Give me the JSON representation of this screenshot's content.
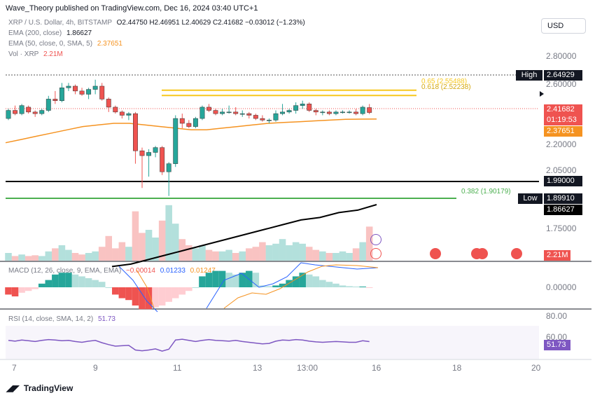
{
  "header": {
    "publisher": "Wave_Theory published on TradingView.com, Dec 16, 2024 03:40 UTC+1"
  },
  "currency_button": "USD",
  "legend": {
    "symbol": "XRP / U.S. Dollar, 4h, BITSTAMP",
    "ohlc": "O2.44750  H2.46951  L2.40629  C2.41682  −0.03012 (−1.23%)",
    "ema200_label": "EMA (200, close)",
    "ema200_value": "1.86627",
    "ema50_label": "EMA (50, close, 0, SMA, 5)",
    "ema50_value": "2.37651",
    "vol_label": "Vol · XRP",
    "vol_value": "2.21M",
    "macd_label": "MACD (12, 26, close, 9, EMA, EMA)",
    "macd_v1": "−0.00014",
    "macd_v2": "0.01233",
    "macd_v3": "0.01247",
    "rsi_label": "RSI (14, close, SMA, 14, 2)",
    "rsi_value": "51.73"
  },
  "price_axis": [
    "2.80000",
    "2.60000",
    "2.20000",
    "2.05000",
    "1.75000"
  ],
  "macd_axis": [
    "0.00000"
  ],
  "rsi_axis": [
    "80.00",
    "60.00"
  ],
  "price_tags": {
    "high_label": "High",
    "high_value": "2.64929",
    "last_value": "2.41682",
    "countdown": "01:19:53",
    "ema50_tag": "2.37651",
    "level1_tag": "1.99000",
    "low_label": "Low",
    "low_value": "1.89910",
    "ema200_tag": "1.86627",
    "vol_tag": "2.21M",
    "rsi_tag": "51.73"
  },
  "fib": {
    "upper_label": "0.65 (2.55488)",
    "lower_label": "0.618 (2.52238)",
    "mid_label": "0.382 (1.90179)"
  },
  "x_axis": [
    "7",
    "9",
    "11",
    "13",
    "13:00",
    "16",
    "18",
    "20"
  ],
  "brand": "TradingView",
  "colors": {
    "up": "#26a69a",
    "down": "#ef5350",
    "ema50": "#f59321",
    "ema200": "#000000",
    "fib": "#f7c81e",
    "fib382": "#4caf50",
    "rsi": "#7e57c2"
  },
  "chart_data": {
    "type": "candlestick",
    "timeframe": "4h",
    "xlabels": [
      "7",
      "9",
      "11",
      "13",
      "13:00",
      "16",
      "18",
      "20"
    ],
    "ylim": [
      1.75,
      2.8
    ],
    "candles_ohlc": [
      [
        2.38,
        2.44,
        2.37,
        2.43
      ],
      [
        2.43,
        2.46,
        2.4,
        2.41
      ],
      [
        2.41,
        2.47,
        2.4,
        2.46
      ],
      [
        2.45,
        2.46,
        2.41,
        2.42
      ],
      [
        2.42,
        2.43,
        2.39,
        2.41
      ],
      [
        2.41,
        2.44,
        2.4,
        2.43
      ],
      [
        2.43,
        2.52,
        2.42,
        2.5
      ],
      [
        2.5,
        2.55,
        2.47,
        2.49
      ],
      [
        2.49,
        2.6,
        2.48,
        2.57
      ],
      [
        2.57,
        2.6,
        2.55,
        2.58
      ],
      [
        2.58,
        2.59,
        2.53,
        2.55
      ],
      [
        2.55,
        2.57,
        2.52,
        2.53
      ],
      [
        2.53,
        2.57,
        2.5,
        2.56
      ],
      [
        2.56,
        2.62,
        2.53,
        2.58
      ],
      [
        2.58,
        2.6,
        2.49,
        2.5
      ],
      [
        2.5,
        2.51,
        2.42,
        2.45
      ],
      [
        2.45,
        2.46,
        2.41,
        2.42
      ],
      [
        2.42,
        2.43,
        2.38,
        2.4
      ],
      [
        2.4,
        2.42,
        2.37,
        2.41
      ],
      [
        2.41,
        2.42,
        2.1,
        2.18
      ],
      [
        2.18,
        2.2,
        1.95,
        2.15
      ],
      [
        2.15,
        2.19,
        2.02,
        2.17
      ],
      [
        2.17,
        2.21,
        2.14,
        2.2
      ],
      [
        2.2,
        2.21,
        2.03,
        2.05
      ],
      [
        2.05,
        2.11,
        1.9,
        2.1
      ],
      [
        2.1,
        2.4,
        2.08,
        2.38
      ],
      [
        2.38,
        2.41,
        2.32,
        2.35
      ],
      [
        2.35,
        2.37,
        2.32,
        2.33
      ],
      [
        2.33,
        2.39,
        2.32,
        2.38
      ],
      [
        2.38,
        2.46,
        2.37,
        2.45
      ],
      [
        2.45,
        2.47,
        2.42,
        2.43
      ],
      [
        2.43,
        2.44,
        2.4,
        2.41
      ],
      [
        2.41,
        2.44,
        2.4,
        2.42
      ],
      [
        2.42,
        2.46,
        2.41,
        2.42
      ],
      [
        2.42,
        2.45,
        2.4,
        2.41
      ],
      [
        2.41,
        2.43,
        2.39,
        2.41
      ],
      [
        2.41,
        2.42,
        2.38,
        2.4
      ],
      [
        2.4,
        2.41,
        2.37,
        2.38
      ],
      [
        2.38,
        2.4,
        2.36,
        2.37
      ],
      [
        2.37,
        2.38,
        2.35,
        2.37
      ],
      [
        2.37,
        2.43,
        2.36,
        2.41
      ],
      [
        2.41,
        2.47,
        2.4,
        2.42
      ],
      [
        2.42,
        2.44,
        2.41,
        2.43
      ],
      [
        2.43,
        2.48,
        2.41,
        2.46
      ],
      [
        2.46,
        2.49,
        2.44,
        2.47
      ],
      [
        2.47,
        2.48,
        2.42,
        2.43
      ],
      [
        2.43,
        2.44,
        2.4,
        2.42
      ],
      [
        2.42,
        2.43,
        2.4,
        2.42
      ],
      [
        2.42,
        2.43,
        2.4,
        2.41
      ],
      [
        2.41,
        2.43,
        2.4,
        2.42
      ],
      [
        2.42,
        2.43,
        2.41,
        2.42
      ],
      [
        2.42,
        2.43,
        2.41,
        2.42
      ],
      [
        2.42,
        2.44,
        2.4,
        2.41
      ],
      [
        2.41,
        2.46,
        2.4,
        2.45
      ],
      [
        2.4475,
        2.46951,
        2.40629,
        2.41682
      ]
    ],
    "ema50": [
      2.23,
      2.25,
      2.27,
      2.29,
      2.31,
      2.33,
      2.34,
      2.35,
      2.35,
      2.34,
      2.33,
      2.32,
      2.31,
      2.31,
      2.32,
      2.33,
      2.34,
      2.35,
      2.355,
      2.36,
      2.365,
      2.37,
      2.375,
      2.376,
      2.37651
    ],
    "ema200": [
      1.74,
      1.745,
      1.755,
      1.765,
      1.775,
      1.785,
      1.795,
      1.805,
      1.815,
      1.825,
      1.835,
      1.84,
      1.85,
      1.855,
      1.86627
    ],
    "levels": {
      "high": 2.64929,
      "fib_065": 2.55488,
      "fib_0618": 2.52238,
      "support": 1.99,
      "fib_0382": 1.90179,
      "low": 1.8991
    },
    "volume": [
      0.5,
      0.3,
      0.4,
      0.3,
      0.35,
      0.3,
      0.6,
      0.8,
      1.0,
      0.7,
      0.5,
      0.4,
      0.5,
      0.6,
      0.9,
      1.6,
      0.8,
      1.2,
      0.9,
      3.2,
      1.8,
      2.0,
      1.5,
      2.6,
      3.6,
      2.4,
      1.4,
      1.0,
      0.8,
      1.0,
      0.7,
      0.6,
      0.6,
      0.7,
      0.5,
      0.6,
      0.8,
      0.9,
      1.2,
      1.0,
      1.1,
      1.4,
      1.0,
      1.2,
      1.1,
      0.9,
      0.7,
      0.6,
      0.5,
      0.5,
      0.6,
      0.5,
      0.8,
      1.2,
      2.21
    ],
    "macd_hist": [
      -0.02,
      -0.025,
      -0.015,
      -0.01,
      -0.005,
      0.01,
      0.02,
      0.035,
      0.04,
      0.04,
      0.035,
      0.03,
      0.025,
      0.02,
      0.015,
      0.0,
      -0.02,
      -0.03,
      -0.035,
      -0.05,
      -0.06,
      -0.06,
      -0.055,
      -0.05,
      -0.04,
      -0.03,
      -0.02,
      -0.01,
      0.0,
      0.03,
      0.04,
      0.045,
      0.045,
      0.04,
      0.035,
      0.04,
      0.045,
      0.04,
      0.005,
      0.003,
      0.005,
      0.01,
      0.02,
      0.03,
      0.04,
      0.035,
      0.03,
      0.02,
      0.015,
      0.01,
      0.005,
      0.003,
      0.002,
      0.002,
      -0.00014
    ],
    "rsi": [
      55,
      53,
      56,
      54,
      52,
      55,
      57,
      56,
      54,
      55,
      52,
      50,
      53,
      55,
      49,
      44,
      40,
      41,
      42,
      30,
      28,
      30,
      33,
      27,
      32,
      56,
      58,
      55,
      52,
      55,
      57,
      55,
      54,
      53,
      55,
      52,
      50,
      48,
      46,
      47,
      53,
      56,
      55,
      57,
      56,
      53,
      51,
      50,
      51,
      52,
      51,
      50,
      50,
      54,
      51.73
    ]
  }
}
